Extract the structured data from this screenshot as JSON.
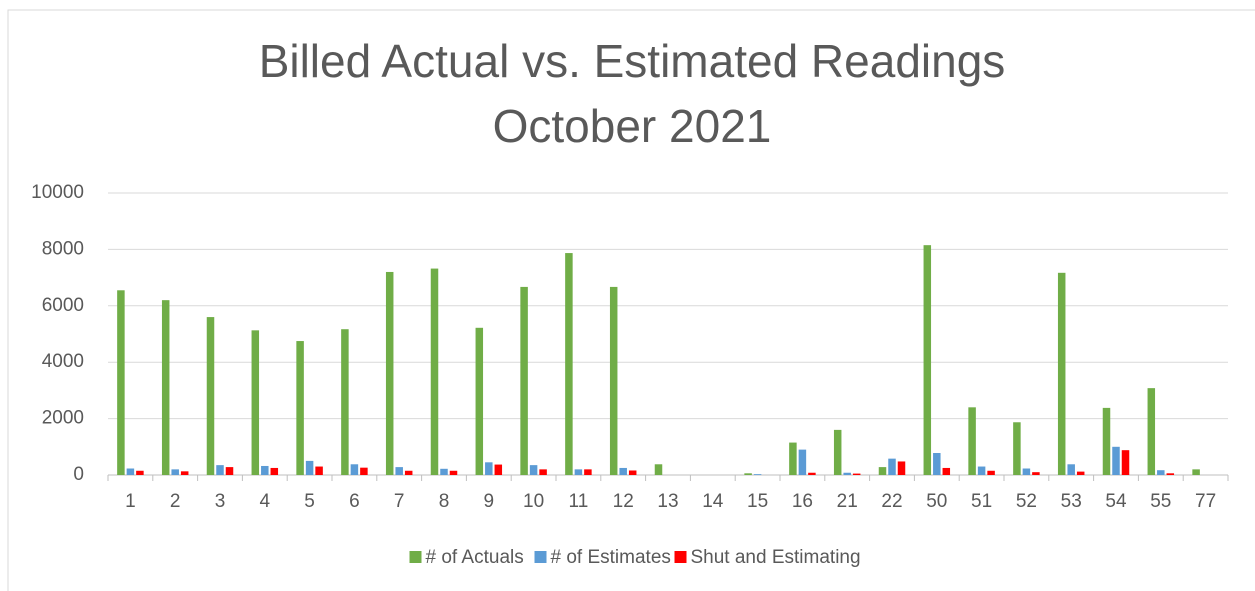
{
  "chart_data": {
    "type": "bar",
    "title": [
      "Billed Actual vs. Estimated Readings",
      "October 2021"
    ],
    "categories": [
      "1",
      "2",
      "3",
      "4",
      "5",
      "6",
      "7",
      "8",
      "9",
      "10",
      "11",
      "12",
      "13",
      "14",
      "15",
      "16",
      "21",
      "22",
      "50",
      "51",
      "52",
      "53",
      "54",
      "55",
      "77"
    ],
    "series": [
      {
        "name": "# of Actuals",
        "color": "#70ad47",
        "values": [
          6550,
          6200,
          5600,
          5130,
          4750,
          5170,
          7200,
          7320,
          5220,
          6670,
          7870,
          6670,
          380,
          0,
          60,
          1150,
          1600,
          280,
          8150,
          2400,
          1870,
          7170,
          2380,
          3080,
          200
        ]
      },
      {
        "name": "# of Estimates",
        "color": "#5b9bd5",
        "values": [
          230,
          200,
          350,
          320,
          500,
          380,
          280,
          220,
          450,
          350,
          200,
          250,
          0,
          0,
          30,
          900,
          80,
          580,
          780,
          300,
          230,
          380,
          1000,
          170,
          0
        ]
      },
      {
        "name": "Shut and Estimating",
        "color": "#ff0000",
        "values": [
          150,
          130,
          280,
          250,
          300,
          260,
          150,
          150,
          370,
          200,
          200,
          160,
          0,
          0,
          0,
          80,
          50,
          480,
          250,
          150,
          100,
          120,
          880,
          60,
          0
        ]
      }
    ],
    "ylim": [
      0,
      10000
    ],
    "yticks": [
      0,
      2000,
      4000,
      6000,
      8000,
      10000
    ],
    "grid": true,
    "legend": "bottom"
  }
}
